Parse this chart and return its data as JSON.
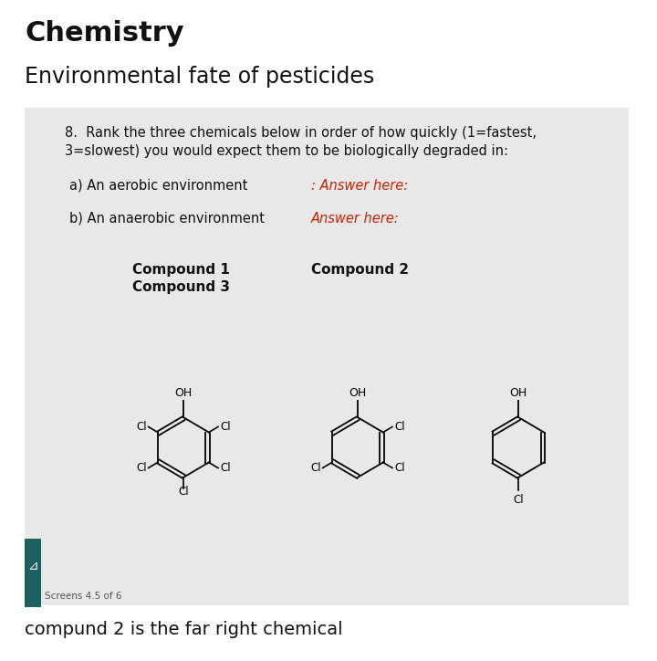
{
  "title": "Chemistry",
  "subtitle": "Environmental fate of pesticides",
  "card_bg": "#e8e8e8",
  "screen_bg": "#ffffff",
  "question_text_line1": "8.  Rank the three chemicals below in order of how quickly (1=fastest,",
  "question_text_line2": "3=slowest) you would expect them to be biologically degraded in:",
  "part_a_label": "a) An aerobic environment",
  "part_a_answer": ": Answer here:",
  "part_b_label": "b) An anaerobic environment",
  "part_b_answer": "Answer here:",
  "compound1_label": "Compound 1",
  "compound3_label": "Compound 3",
  "compound2_label": "Compound 2",
  "footer_text": "Screens 4.5 of 6",
  "bottom_note": "compund 2 is the far right chemical",
  "answer_color": "#cc2200",
  "text_color": "#1a1a1a",
  "dark_text": "#111111"
}
